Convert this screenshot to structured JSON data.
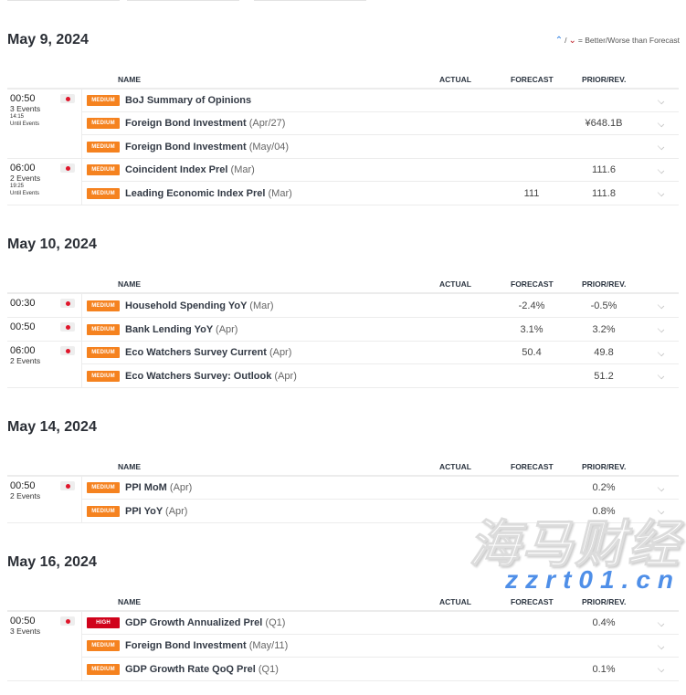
{
  "legend": {
    "text": "= Better/Worse than Forecast",
    "better_icon": "arrow-up-icon",
    "worse_icon": "arrow-down-icon",
    "sep": "/"
  },
  "columns": {
    "name": "NAME",
    "actual": "ACTUAL",
    "forecast": "FORECAST",
    "prior": "PRIOR/REV."
  },
  "colors": {
    "medium": "#f5821f",
    "high": "#d0021b",
    "flag_dot": "#e0152a"
  },
  "days": [
    {
      "date": "May 9, 2024",
      "show_legend": true,
      "groups": [
        {
          "time": "00:50",
          "count": "3 Events",
          "until_time": "14:15",
          "until_label": "Until Events",
          "flag": "japan",
          "events": [
            {
              "impact": "MEDIUM",
              "level": "medium",
              "name": "BoJ Summary of Opinions",
              "period": "",
              "actual": "",
              "forecast": "",
              "prior": ""
            },
            {
              "impact": "MEDIUM",
              "level": "medium",
              "name": "Foreign Bond Investment",
              "period": "(Apr/27)",
              "actual": "",
              "forecast": "",
              "prior": "¥648.1B"
            },
            {
              "impact": "MEDIUM",
              "level": "medium",
              "name": "Foreign Bond Investment",
              "period": "(May/04)",
              "actual": "",
              "forecast": "",
              "prior": ""
            }
          ]
        },
        {
          "time": "06:00",
          "count": "2 Events",
          "until_time": "19:25",
          "until_label": "Until Events",
          "flag": "japan",
          "events": [
            {
              "impact": "MEDIUM",
              "level": "medium",
              "name": "Coincident Index Prel",
              "period": "(Mar)",
              "actual": "",
              "forecast": "",
              "prior": "111.6"
            },
            {
              "impact": "MEDIUM",
              "level": "medium",
              "name": "Leading Economic Index Prel",
              "period": "(Mar)",
              "actual": "",
              "forecast": "111",
              "prior": "111.8"
            }
          ]
        }
      ]
    },
    {
      "date": "May 10, 2024",
      "groups": [
        {
          "time": "00:30",
          "count": "",
          "flag": "japan",
          "events": [
            {
              "impact": "MEDIUM",
              "level": "medium",
              "name": "Household Spending YoY",
              "period": "(Mar)",
              "actual": "",
              "forecast": "-2.4%",
              "prior": "-0.5%"
            }
          ]
        },
        {
          "time": "00:50",
          "count": "",
          "flag": "japan",
          "events": [
            {
              "impact": "MEDIUM",
              "level": "medium",
              "name": "Bank Lending YoY",
              "period": "(Apr)",
              "actual": "",
              "forecast": "3.1%",
              "prior": "3.2%"
            }
          ]
        },
        {
          "time": "06:00",
          "count": "2 Events",
          "flag": "japan",
          "events": [
            {
              "impact": "MEDIUM",
              "level": "medium",
              "name": "Eco Watchers Survey Current",
              "period": "(Apr)",
              "actual": "",
              "forecast": "50.4",
              "prior": "49.8"
            },
            {
              "impact": "MEDIUM",
              "level": "medium",
              "name": "Eco Watchers Survey: Outlook",
              "period": "(Apr)",
              "actual": "",
              "forecast": "",
              "prior": "51.2"
            }
          ]
        }
      ]
    },
    {
      "date": "May 14, 2024",
      "groups": [
        {
          "time": "00:50",
          "count": "2 Events",
          "flag": "japan",
          "events": [
            {
              "impact": "MEDIUM",
              "level": "medium",
              "name": "PPI MoM",
              "period": "(Apr)",
              "actual": "",
              "forecast": "",
              "prior": "0.2%"
            },
            {
              "impact": "MEDIUM",
              "level": "medium",
              "name": "PPI YoY",
              "period": "(Apr)",
              "actual": "",
              "forecast": "",
              "prior": "0.8%"
            }
          ]
        }
      ]
    },
    {
      "date": "May 16, 2024",
      "groups": [
        {
          "time": "00:50",
          "count": "3 Events",
          "flag": "japan",
          "events": [
            {
              "impact": "HIGH",
              "level": "high",
              "name": "GDP Growth Annualized Prel",
              "period": "(Q1)",
              "actual": "",
              "forecast": "",
              "prior": "0.4%"
            },
            {
              "impact": "MEDIUM",
              "level": "medium",
              "name": "Foreign Bond Investment",
              "period": "(May/11)",
              "actual": "",
              "forecast": "",
              "prior": ""
            },
            {
              "impact": "MEDIUM",
              "level": "medium",
              "name": "GDP Growth Rate QoQ Prel",
              "period": "(Q1)",
              "actual": "",
              "forecast": "",
              "prior": "0.1%"
            }
          ]
        }
      ]
    }
  ],
  "watermark": {
    "cn": "海马财经",
    "en": "zzrt01.cn"
  }
}
